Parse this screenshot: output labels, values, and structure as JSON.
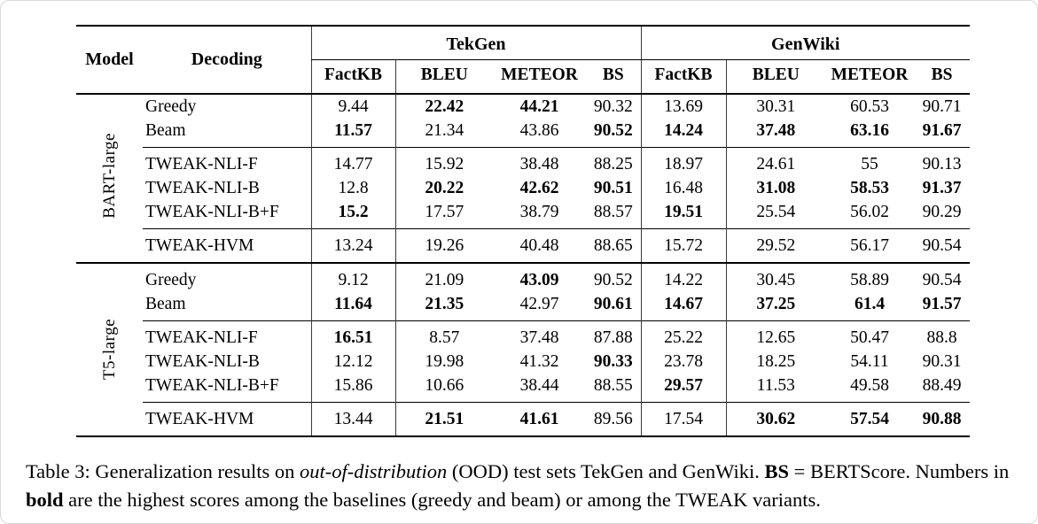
{
  "table": {
    "header": {
      "model": "Model",
      "decoding": "Decoding",
      "groups": [
        {
          "label": "TekGen",
          "metrics": [
            "FactKB",
            "BLEU",
            "METEOR",
            "BS"
          ]
        },
        {
          "label": "GenWiki",
          "metrics": [
            "FactKB",
            "BLEU",
            "METEOR",
            "BS"
          ]
        }
      ]
    },
    "sections": [
      {
        "model": "BART-large",
        "subgroups": [
          {
            "rows": [
              {
                "decoding": "Greedy",
                "values": [
                  "9.44",
                  "22.42",
                  "44.21",
                  "90.32",
                  "13.69",
                  "30.31",
                  "60.53",
                  "90.71"
                ],
                "bold": [
                  1,
                  2
                ]
              },
              {
                "decoding": "Beam",
                "values": [
                  "11.57",
                  "21.34",
                  "43.86",
                  "90.52",
                  "14.24",
                  "37.48",
                  "63.16",
                  "91.67"
                ],
                "bold": [
                  0,
                  3,
                  4,
                  5,
                  6,
                  7
                ]
              }
            ]
          },
          {
            "rows": [
              {
                "decoding": "TWEAK-NLI-F",
                "values": [
                  "14.77",
                  "15.92",
                  "38.48",
                  "88.25",
                  "18.97",
                  "24.61",
                  "55",
                  "90.13"
                ],
                "bold": []
              },
              {
                "decoding": "TWEAK-NLI-B",
                "values": [
                  "12.8",
                  "20.22",
                  "42.62",
                  "90.51",
                  "16.48",
                  "31.08",
                  "58.53",
                  "91.37"
                ],
                "bold": [
                  1,
                  2,
                  3,
                  5,
                  6,
                  7
                ]
              },
              {
                "decoding": "TWEAK-NLI-B+F",
                "values": [
                  "15.2",
                  "17.57",
                  "38.79",
                  "88.57",
                  "19.51",
                  "25.54",
                  "56.02",
                  "90.29"
                ],
                "bold": [
                  0,
                  4
                ]
              }
            ]
          },
          {
            "rows": [
              {
                "decoding": "TWEAK-HVM",
                "values": [
                  "13.24",
                  "19.26",
                  "40.48",
                  "88.65",
                  "15.72",
                  "29.52",
                  "56.17",
                  "90.54"
                ],
                "bold": []
              }
            ]
          }
        ]
      },
      {
        "model": "T5-large",
        "subgroups": [
          {
            "rows": [
              {
                "decoding": "Greedy",
                "values": [
                  "9.12",
                  "21.09",
                  "43.09",
                  "90.52",
                  "14.22",
                  "30.45",
                  "58.89",
                  "90.54"
                ],
                "bold": [
                  2
                ]
              },
              {
                "decoding": "Beam",
                "values": [
                  "11.64",
                  "21.35",
                  "42.97",
                  "90.61",
                  "14.67",
                  "37.25",
                  "61.4",
                  "91.57"
                ],
                "bold": [
                  0,
                  1,
                  3,
                  4,
                  5,
                  6,
                  7
                ]
              }
            ]
          },
          {
            "rows": [
              {
                "decoding": "TWEAK-NLI-F",
                "values": [
                  "16.51",
                  "8.57",
                  "37.48",
                  "87.88",
                  "25.22",
                  "12.65",
                  "50.47",
                  "88.8"
                ],
                "bold": [
                  0
                ]
              },
              {
                "decoding": "TWEAK-NLI-B",
                "values": [
                  "12.12",
                  "19.98",
                  "41.32",
                  "90.33",
                  "23.78",
                  "18.25",
                  "54.11",
                  "90.31"
                ],
                "bold": [
                  3
                ]
              },
              {
                "decoding": "TWEAK-NLI-B+F",
                "values": [
                  "15.86",
                  "10.66",
                  "38.44",
                  "88.55",
                  "29.57",
                  "11.53",
                  "49.58",
                  "88.49"
                ],
                "bold": [
                  4
                ]
              }
            ]
          },
          {
            "rows": [
              {
                "decoding": "TWEAK-HVM",
                "values": [
                  "13.44",
                  "21.51",
                  "41.61",
                  "89.56",
                  "17.54",
                  "30.62",
                  "57.54",
                  "90.88"
                ],
                "bold": [
                  1,
                  2,
                  5,
                  6,
                  7
                ]
              }
            ]
          }
        ]
      }
    ]
  },
  "caption": {
    "segments": [
      {
        "t": "Table 3: Generalization results on "
      },
      {
        "t": "out-of-distribution",
        "i": true
      },
      {
        "t": " (OOD) test sets TekGen and GenWiki. "
      },
      {
        "t": "BS",
        "b": true
      },
      {
        "t": " = BERTScore. Numbers in "
      },
      {
        "t": "bold",
        "b": true
      },
      {
        "t": " are the highest scores among the baselines (greedy and beam) or among the TWEAK variants."
      }
    ]
  }
}
